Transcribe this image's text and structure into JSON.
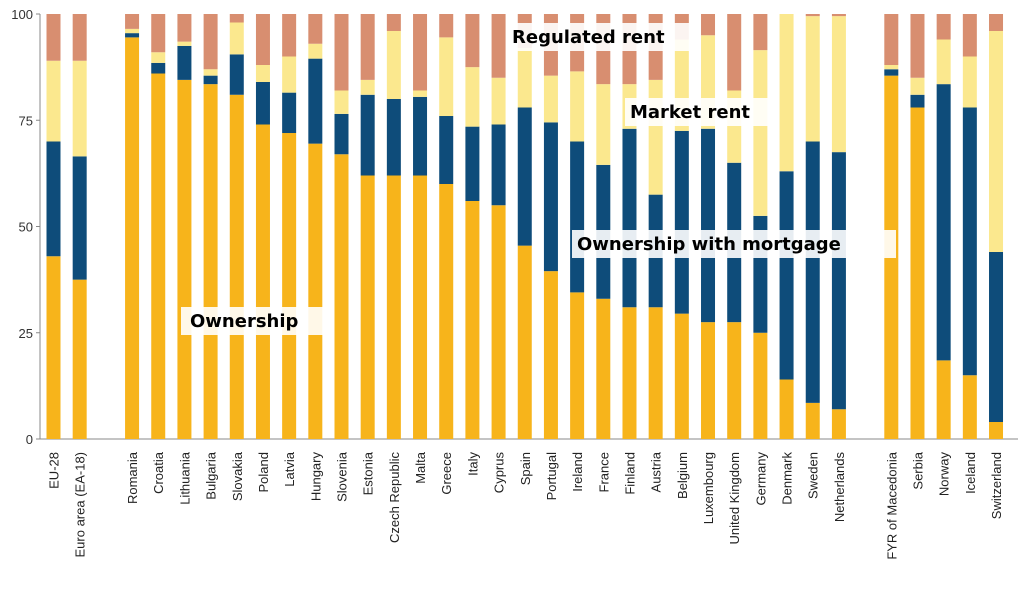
{
  "chart_data": {
    "type": "bar",
    "stacked": true,
    "ylim": [
      0,
      100
    ],
    "yticks": [
      "0",
      "25",
      "50",
      "75",
      "100"
    ],
    "grid": false,
    "categories": [
      "EU-28",
      "Euro area (EA-18)",
      "Romania",
      "Croatia",
      "Lithuania",
      "Bulgaria",
      "Slovakia",
      "Poland",
      "Latvia",
      "Hungary",
      "Slovenia",
      "Estonia",
      "Czech Republic",
      "Malta",
      "Greece",
      "Italy",
      "Cyprus",
      "Spain",
      "Portugal",
      "Ireland",
      "France",
      "Finland",
      "Austria",
      "Belgium",
      "Luxembourg",
      "United Kingdom",
      "Germany",
      "Denmark",
      "Sweden",
      "Netherlands",
      "FYR of Macedonia",
      "Serbia",
      "Norway",
      "Iceland",
      "Switzerland"
    ],
    "groups": [
      2,
      28,
      5
    ],
    "series": [
      {
        "name": "Ownership",
        "color": "#F7B41B",
        "values": [
          43,
          37.5,
          94.5,
          86,
          84.5,
          83.5,
          81,
          74,
          72,
          69.5,
          67,
          62,
          62,
          62,
          60,
          56,
          55,
          45.5,
          39.5,
          34.5,
          33,
          31,
          31,
          29.5,
          27.5,
          27.5,
          25,
          14,
          8.5,
          7,
          85.5,
          78,
          18.5,
          15,
          4
        ]
      },
      {
        "name": "Ownership with mortgage",
        "color": "#0E4C7A",
        "values": [
          27,
          29,
          1,
          2.5,
          8,
          2,
          9.5,
          10,
          9.5,
          20,
          9.5,
          19,
          18,
          18.5,
          16,
          17.5,
          19,
          32.5,
          35,
          35.5,
          31.5,
          42,
          26.5,
          43,
          45.5,
          37.5,
          27.5,
          49,
          61.5,
          60.5,
          1.5,
          3,
          65,
          63,
          40
        ]
      },
      {
        "name": "Market rent",
        "color": "#FBE88E",
        "values": [
          19,
          22.5,
          1,
          2.5,
          1,
          1.5,
          7.5,
          4,
          8.5,
          3.5,
          5.5,
          3.5,
          16,
          1.5,
          18.5,
          14,
          11,
          14,
          11,
          16.5,
          19,
          10.5,
          27,
          21.5,
          22,
          17,
          39,
          37,
          29.5,
          32,
          1,
          4,
          10.5,
          12,
          52
        ]
      },
      {
        "name": "Regulated rent",
        "color": "#D88E70",
        "values": [
          11,
          11,
          3.5,
          9,
          6.5,
          13,
          2,
          12,
          10,
          7,
          18,
          15.5,
          4,
          18,
          5.5,
          12.5,
          15,
          8,
          14.5,
          13.5,
          16.5,
          16.5,
          15.5,
          6,
          5,
          18,
          8.5,
          0,
          0.5,
          0.5,
          12,
          15,
          6,
          10,
          4
        ]
      }
    ],
    "annotations": [
      "Regulated rent",
      "Market rent",
      "Ownership with mortgage",
      "Ownership"
    ]
  }
}
